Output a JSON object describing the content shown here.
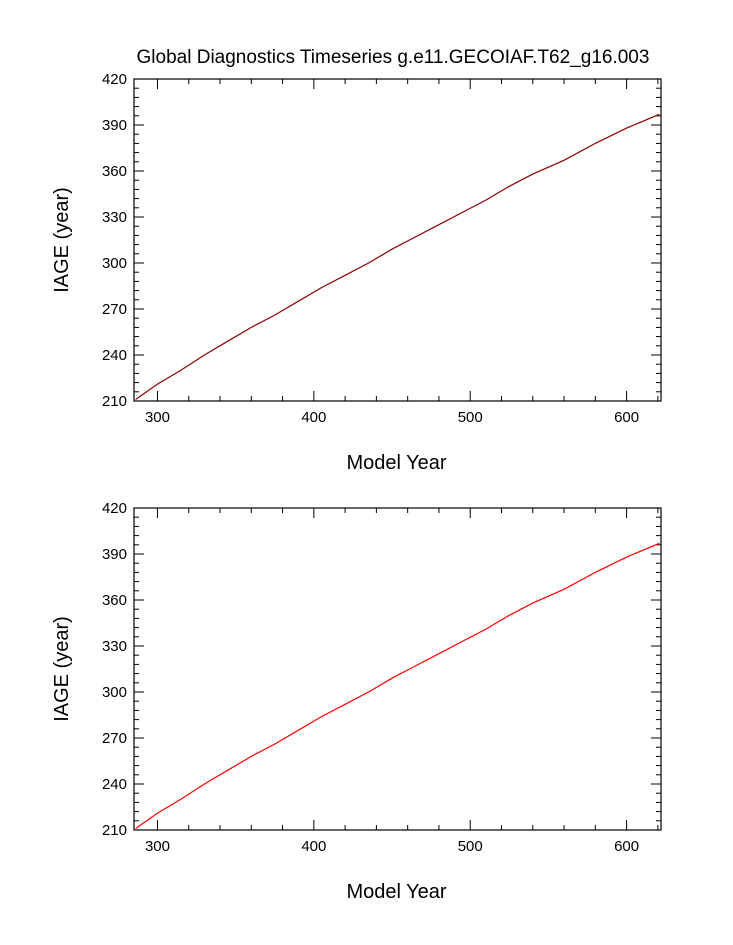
{
  "figure": {
    "title": "Global Diagnostics Timeseries g.e11.GECOIAF.T62_g16.003"
  },
  "chart_data": [
    {
      "type": "line",
      "xlabel": "Model Year",
      "ylabel": "IAGE (year)",
      "xlim": [
        285,
        622
      ],
      "ylim": [
        210,
        420
      ],
      "xticks": [
        300,
        400,
        500,
        600
      ],
      "yticks": [
        210,
        240,
        270,
        300,
        330,
        360,
        390,
        420
      ],
      "series": [
        {
          "color": "#8b0000",
          "x": [
            286,
            300,
            315,
            330,
            345,
            360,
            375,
            390,
            405,
            420,
            435,
            450,
            465,
            480,
            495,
            510,
            525,
            540,
            560,
            580,
            600,
            621
          ],
          "y": [
            211,
            221,
            230,
            240,
            249,
            258,
            266,
            275,
            284,
            292,
            300,
            309,
            317,
            325,
            333,
            341,
            350,
            358,
            367,
            378,
            388,
            397
          ]
        }
      ]
    },
    {
      "type": "line",
      "xlabel": "Model Year",
      "ylabel": "IAGE (year)",
      "xlim": [
        285,
        622
      ],
      "ylim": [
        210,
        420
      ],
      "xticks": [
        300,
        400,
        500,
        600
      ],
      "yticks": [
        210,
        240,
        270,
        300,
        330,
        360,
        390,
        420
      ],
      "series": [
        {
          "color": "#ff0000",
          "x": [
            286,
            300,
            315,
            330,
            345,
            360,
            375,
            390,
            405,
            420,
            435,
            450,
            465,
            480,
            495,
            510,
            525,
            540,
            560,
            580,
            600,
            621
          ],
          "y": [
            211,
            221,
            230,
            240,
            249,
            258,
            266,
            275,
            284,
            292,
            300,
            309,
            317,
            325,
            333,
            341,
            350,
            358,
            367,
            378,
            388,
            397
          ]
        }
      ]
    }
  ]
}
